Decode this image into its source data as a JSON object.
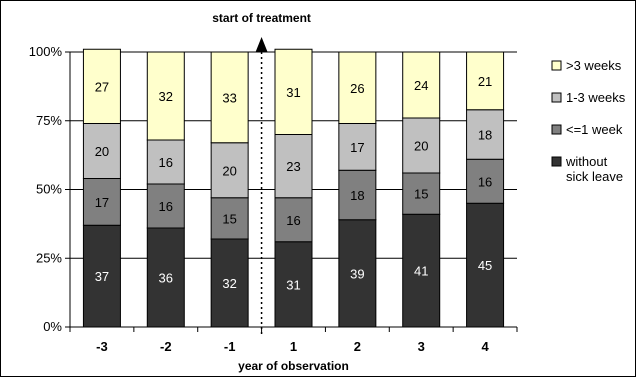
{
  "chart_data": {
    "type": "bar",
    "stacked": true,
    "categories": [
      "-3",
      "-2",
      "-1",
      "1",
      "2",
      "3",
      "4"
    ],
    "series": [
      {
        "name": "without sick leave",
        "name_lines": [
          "without",
          "sick leave"
        ],
        "color": "#333333",
        "label_color": "#ffffff",
        "values": [
          37,
          36,
          32,
          31,
          39,
          41,
          45
        ]
      },
      {
        "name": "<=1 week",
        "color": "#808080",
        "label_color": "#000000",
        "values": [
          17,
          16,
          15,
          16,
          18,
          15,
          16
        ]
      },
      {
        "name": "1-3 weeks",
        "color": "#c0c0c0",
        "label_color": "#000000",
        "values": [
          20,
          16,
          20,
          23,
          17,
          20,
          18
        ]
      },
      {
        "name": ">3 weeks",
        "color": "#ffffcc",
        "label_color": "#000000",
        "values": [
          27,
          32,
          33,
          31,
          26,
          24,
          21
        ]
      }
    ],
    "yticks": [
      "0%",
      "25%",
      "50%",
      "75%",
      "100%"
    ],
    "ylim": [
      0,
      100
    ],
    "xlabel": "year of observation",
    "ylabel": "",
    "title": "",
    "annotation": {
      "text": "start of treatment",
      "between": [
        "-1",
        "1"
      ]
    },
    "grid": true,
    "legend_position": "right"
  }
}
